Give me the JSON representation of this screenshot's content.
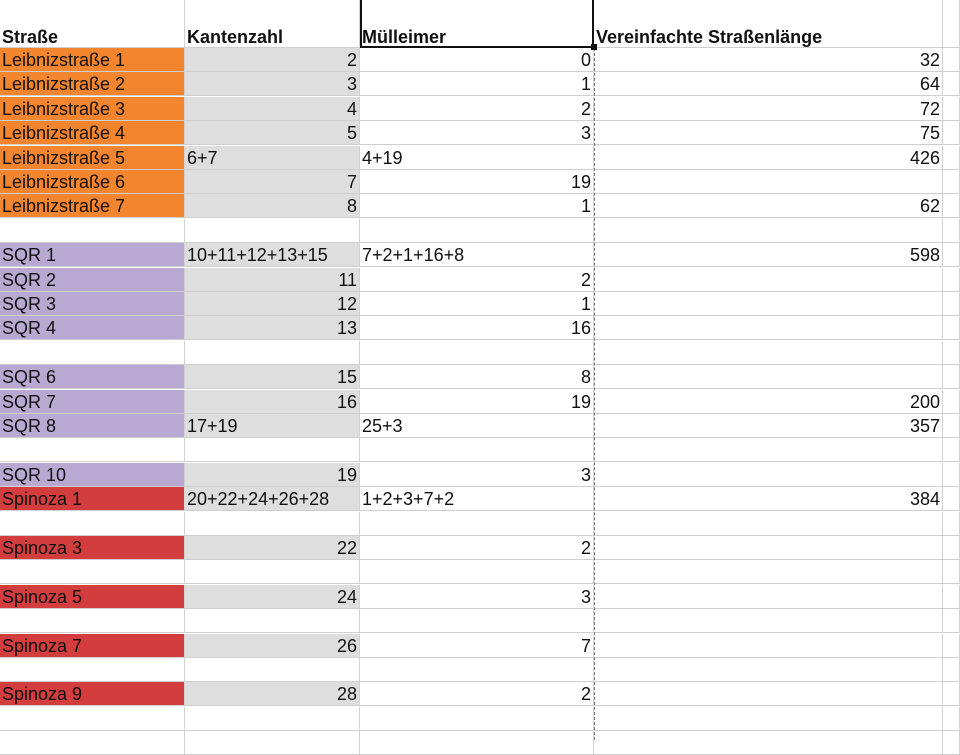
{
  "sheet": {
    "headers": [
      "Straße",
      "Kantenzahl",
      "Mülleimer",
      "Vereinfachte Straßenlänge"
    ],
    "colors": {
      "leibniz": "#f4852f",
      "sqr": "#b8a9d3",
      "spinoza": "#d43d3d",
      "kanten_fill": "#dedede"
    },
    "rows": [
      {
        "strasse": "Leibnizstraße 1",
        "kanten": "2",
        "muell": "0",
        "laenge": "32",
        "group": "orange"
      },
      {
        "strasse": "Leibnizstraße 2",
        "kanten": "3",
        "muell": "1",
        "laenge": "64",
        "group": "orange"
      },
      {
        "strasse": "Leibnizstraße 3",
        "kanten": "4",
        "muell": "2",
        "laenge": "72",
        "group": "orange"
      },
      {
        "strasse": "Leibnizstraße 4",
        "kanten": "5",
        "muell": "3",
        "laenge": "75",
        "group": "orange"
      },
      {
        "strasse": "Leibnizstraße 5",
        "kanten": "6+7",
        "muell": "4+19",
        "laenge": "426",
        "group": "orange"
      },
      {
        "strasse": "Leibnizstraße 6",
        "kanten": "7",
        "muell": "19",
        "laenge": "",
        "group": "orange"
      },
      {
        "strasse": "Leibnizstraße 7",
        "kanten": "8",
        "muell": "1",
        "laenge": "62",
        "group": "orange"
      },
      {
        "strasse": "",
        "kanten": "",
        "muell": "",
        "laenge": "",
        "group": ""
      },
      {
        "strasse": "SQR 1",
        "kanten": "10+11+12+13+15",
        "muell": "7+2+1+16+8",
        "laenge": "598",
        "group": "purple"
      },
      {
        "strasse": "SQR 2",
        "kanten": "11",
        "muell": "2",
        "laenge": "",
        "group": "purple"
      },
      {
        "strasse": "SQR 3",
        "kanten": "12",
        "muell": "1",
        "laenge": "",
        "group": "purple"
      },
      {
        "strasse": "SQR 4",
        "kanten": "13",
        "muell": "16",
        "laenge": "",
        "group": "purple"
      },
      {
        "strasse": "",
        "kanten": "",
        "muell": "",
        "laenge": "",
        "group": ""
      },
      {
        "strasse": "SQR 6",
        "kanten": "15",
        "muell": "8",
        "laenge": "",
        "group": "purple"
      },
      {
        "strasse": "SQR 7",
        "kanten": "16",
        "muell": "19",
        "laenge": "200",
        "group": "purple"
      },
      {
        "strasse": "SQR 8",
        "kanten": "17+19",
        "muell": "25+3",
        "laenge": "357",
        "group": "purple"
      },
      {
        "strasse": "",
        "kanten": "",
        "muell": "",
        "laenge": "",
        "group": ""
      },
      {
        "strasse": "SQR 10",
        "kanten": "19",
        "muell": "3",
        "laenge": "",
        "group": "purple"
      },
      {
        "strasse": "Spinoza 1",
        "kanten": "20+22+24+26+28",
        "muell": "1+2+3+7+2",
        "laenge": "384",
        "group": "red"
      },
      {
        "strasse": "",
        "kanten": "",
        "muell": "",
        "laenge": "",
        "group": ""
      },
      {
        "strasse": "Spinoza 3",
        "kanten": "22",
        "muell": "2",
        "laenge": "",
        "group": "red"
      },
      {
        "strasse": "",
        "kanten": "",
        "muell": "",
        "laenge": "",
        "group": ""
      },
      {
        "strasse": "Spinoza 5",
        "kanten": "24",
        "muell": "3",
        "laenge": "",
        "group": "red"
      },
      {
        "strasse": "",
        "kanten": "",
        "muell": "",
        "laenge": "",
        "group": ""
      },
      {
        "strasse": "Spinoza 7",
        "kanten": "26",
        "muell": "7",
        "laenge": "",
        "group": "red"
      },
      {
        "strasse": "",
        "kanten": "",
        "muell": "",
        "laenge": "",
        "group": ""
      },
      {
        "strasse": "Spinoza 9",
        "kanten": "28",
        "muell": "2",
        "laenge": "",
        "group": "red"
      },
      {
        "strasse": "",
        "kanten": "",
        "muell": "",
        "laenge": "",
        "group": ""
      },
      {
        "strasse": "",
        "kanten": "",
        "muell": "",
        "laenge": "",
        "group": ""
      }
    ]
  }
}
